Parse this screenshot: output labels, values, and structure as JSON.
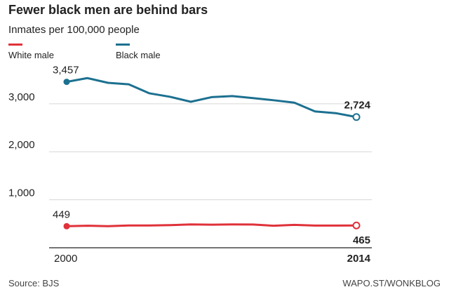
{
  "chart_data": {
    "type": "line",
    "title": "Fewer black men are behind bars",
    "subtitle": "Inmates per 100,000 people",
    "xlabel": "",
    "ylabel": "",
    "x": [
      2000,
      2001,
      2002,
      2003,
      2004,
      2005,
      2006,
      2007,
      2008,
      2009,
      2010,
      2011,
      2012,
      2013,
      2014
    ],
    "xticks": [
      "2000",
      "2014"
    ],
    "yticks": [
      "1,000",
      "2,000",
      "3,000"
    ],
    "ytick_values": [
      1000,
      2000,
      3000
    ],
    "ylim": [
      0,
      3700
    ],
    "series": [
      {
        "name": "White male",
        "color": "#e0313a",
        "values": [
          449,
          459,
          450,
          465,
          464,
          471,
          487,
          481,
          487,
          485,
          459,
          478,
          463,
          462,
          465
        ],
        "start_label": "449",
        "end_label": "465"
      },
      {
        "name": "Black male",
        "color": "#1c7090",
        "values": [
          3457,
          3535,
          3437,
          3405,
          3218,
          3145,
          3042,
          3138,
          3161,
          3119,
          3074,
          3023,
          2841,
          2805,
          2724
        ],
        "start_label": "3,457",
        "end_label": "2,724"
      }
    ],
    "source": "Source: BJS",
    "credit": "WAPO.ST/WONKBLOG"
  }
}
